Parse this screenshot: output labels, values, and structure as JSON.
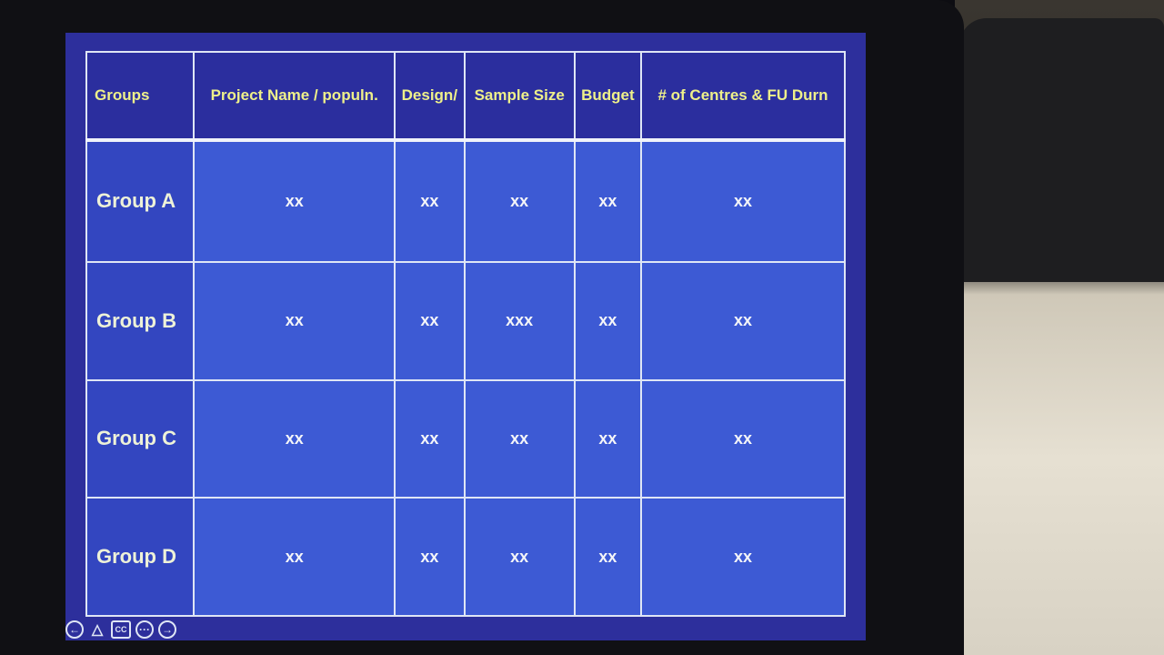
{
  "table": {
    "headers": [
      "Groups",
      "Project Name / populn.",
      "Design/",
      "Sample Size",
      "Budget",
      "# of Centres & FU Durn"
    ],
    "rows": [
      {
        "group": "Group A",
        "cells": [
          "xx",
          "xx",
          "xx",
          "xx",
          "xx"
        ]
      },
      {
        "group": "Group B",
        "cells": [
          "xx",
          "xx",
          "xxx",
          "xx",
          "xx"
        ]
      },
      {
        "group": "Group C",
        "cells": [
          "xx",
          "xx",
          "xx",
          "xx",
          "xx"
        ]
      },
      {
        "group": "Group D",
        "cells": [
          "xx",
          "xx",
          "xx",
          "xx",
          "xx"
        ]
      }
    ]
  },
  "controls": {
    "icons": [
      "previous-icon",
      "pointer-icon",
      "captions-icon",
      "more-icon",
      "next-icon"
    ],
    "cc_label": "CC"
  },
  "colors": {
    "header_bg": "#2b2e9e",
    "cell_bg": "#3d5ad4",
    "header_text": "#eef08a"
  }
}
